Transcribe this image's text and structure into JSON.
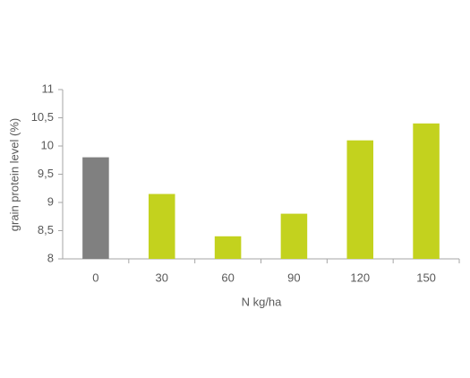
{
  "chart_data": {
    "type": "bar",
    "x_label": "N kg/ha",
    "y_label": "grain protein level (%)",
    "categories": [
      "0",
      "30",
      "60",
      "90",
      "120",
      "150"
    ],
    "values": [
      9.8,
      9.15,
      8.4,
      8.8,
      10.1,
      10.4
    ],
    "colors": [
      "#808080",
      "#c3d21e",
      "#c3d21e",
      "#c3d21e",
      "#c3d21e",
      "#c3d21e"
    ],
    "ylim": [
      8,
      11
    ],
    "yticks": [
      8,
      {
        "value": 8.5,
        "label": "8,5"
      },
      9,
      {
        "value": 9.5,
        "label": "9,5"
      },
      10,
      {
        "value": 10.5,
        "label": "10,5"
      },
      11
    ],
    "grid": false
  }
}
